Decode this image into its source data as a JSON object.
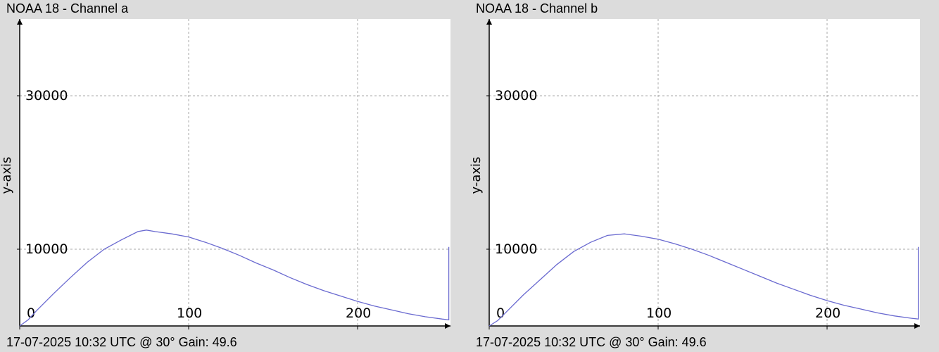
{
  "chart_data": [
    {
      "type": "line",
      "title": "NOAA 18 - Channel a",
      "ylabel": "y-axis",
      "xlabel": "",
      "footer": "17-07-2025 10:32 UTC @ 30° Gain: 49.6",
      "x_ticks": [
        0,
        100,
        200
      ],
      "y_ticks": [
        10000,
        30000
      ],
      "y_tick_labels": [
        "10000",
        "30000"
      ],
      "x_tick_labels": [
        "0",
        "100",
        "200"
      ],
      "xlim": [
        0,
        255
      ],
      "ylim": [
        0,
        40000
      ],
      "grid": true,
      "line_color": "#6a6ad0",
      "series": [
        {
          "values_points": [
            [
              0,
              0
            ],
            [
              5,
              800
            ],
            [
              10,
              2000
            ],
            [
              20,
              4200
            ],
            [
              30,
              6300
            ],
            [
              40,
              8300
            ],
            [
              50,
              10000
            ],
            [
              60,
              11200
            ],
            [
              70,
              12300
            ],
            [
              75,
              12500
            ],
            [
              80,
              12300
            ],
            [
              90,
              12000
            ],
            [
              100,
              11600
            ],
            [
              110,
              10900
            ],
            [
              120,
              10100
            ],
            [
              130,
              9200
            ],
            [
              140,
              8200
            ],
            [
              150,
              7300
            ],
            [
              160,
              6300
            ],
            [
              170,
              5400
            ],
            [
              180,
              4600
            ],
            [
              190,
              3900
            ],
            [
              200,
              3200
            ],
            [
              210,
              2600
            ],
            [
              220,
              2100
            ],
            [
              230,
              1600
            ],
            [
              240,
              1200
            ],
            [
              250,
              900
            ],
            [
              254,
              800
            ],
            [
              254,
              10300
            ]
          ]
        }
      ]
    },
    {
      "type": "line",
      "title": "NOAA 18 - Channel b",
      "ylabel": "y-axis",
      "xlabel": "",
      "footer": "17-07-2025 10:32 UTC @ 30° Gain: 49.6",
      "x_ticks": [
        0,
        100,
        200
      ],
      "y_ticks": [
        10000,
        30000
      ],
      "y_tick_labels": [
        "10000",
        "30000"
      ],
      "x_tick_labels": [
        "0",
        "100",
        "200"
      ],
      "xlim": [
        0,
        255
      ],
      "ylim": [
        0,
        40000
      ],
      "grid": true,
      "line_color": "#6a6ad0",
      "series": [
        {
          "values_points": [
            [
              0,
              0
            ],
            [
              5,
              700
            ],
            [
              10,
              1800
            ],
            [
              20,
              4000
            ],
            [
              30,
              6000
            ],
            [
              40,
              8000
            ],
            [
              50,
              9700
            ],
            [
              60,
              10900
            ],
            [
              70,
              11800
            ],
            [
              80,
              12000
            ],
            [
              90,
              11700
            ],
            [
              100,
              11300
            ],
            [
              110,
              10700
            ],
            [
              120,
              10000
            ],
            [
              130,
              9200
            ],
            [
              140,
              8300
            ],
            [
              150,
              7400
            ],
            [
              160,
              6500
            ],
            [
              170,
              5600
            ],
            [
              180,
              4800
            ],
            [
              190,
              4000
            ],
            [
              200,
              3300
            ],
            [
              210,
              2700
            ],
            [
              220,
              2200
            ],
            [
              230,
              1700
            ],
            [
              240,
              1300
            ],
            [
              250,
              1000
            ],
            [
              254,
              900
            ],
            [
              254,
              10300
            ]
          ]
        }
      ]
    }
  ]
}
